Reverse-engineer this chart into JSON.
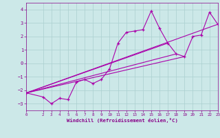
{
  "xlabel": "Windchill (Refroidissement éolien,°C)",
  "x": [
    0,
    2,
    3,
    4,
    5,
    6,
    7,
    8,
    9,
    10,
    11,
    12,
    13,
    14,
    15,
    16,
    17,
    18,
    19,
    20,
    21,
    22,
    23
  ],
  "y": [
    -2.2,
    -2.5,
    -3.0,
    -2.6,
    -2.7,
    -1.4,
    -1.2,
    -1.5,
    -1.2,
    -0.4,
    1.5,
    2.3,
    2.4,
    2.5,
    3.9,
    2.6,
    1.5,
    0.7,
    0.5,
    2.0,
    2.1,
    3.8,
    2.9
  ],
  "line_color": "#aa00aa",
  "bg_color": "#cce8e8",
  "grid_color": "#aacfcf",
  "text_color": "#880088",
  "ylim": [
    -3.5,
    4.5
  ],
  "xlim": [
    0,
    23
  ],
  "yticks": [
    -3,
    -2,
    -1,
    0,
    1,
    2,
    3,
    4
  ],
  "xticks": [
    0,
    2,
    3,
    4,
    5,
    6,
    7,
    8,
    9,
    10,
    11,
    12,
    13,
    14,
    15,
    16,
    17,
    18,
    19,
    20,
    21,
    22,
    23
  ],
  "trend_lines": [
    [
      [
        0,
        23
      ],
      [
        -2.2,
        2.9
      ]
    ],
    [
      [
        0,
        19
      ],
      [
        -2.2,
        0.5
      ]
    ],
    [
      [
        0,
        18
      ],
      [
        -2.2,
        0.7
      ]
    ],
    [
      [
        0,
        17
      ],
      [
        -2.2,
        1.5
      ]
    ]
  ]
}
